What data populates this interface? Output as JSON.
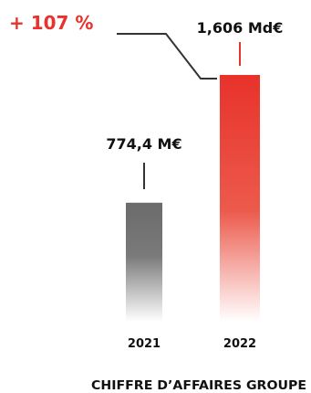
{
  "chart_data": {
    "type": "bar",
    "title": "CHIFFRE D’AFFAIRES GROUPE",
    "categories": [
      "2021",
      "2022"
    ],
    "values": [
      774.4,
      1606
    ],
    "value_unit": "M€",
    "data_labels": [
      "774,4 M€",
      "1,606 Md€"
    ],
    "growth_label": "+ 107 %",
    "ylim": [
      0,
      1750
    ],
    "grid": false,
    "legend": "none",
    "colors": {
      "bar_2021": "#6b6b6b",
      "bar_2022": "#e8322a",
      "growth": "#e8322a",
      "text": "#111111",
      "connector": "#333333"
    }
  }
}
